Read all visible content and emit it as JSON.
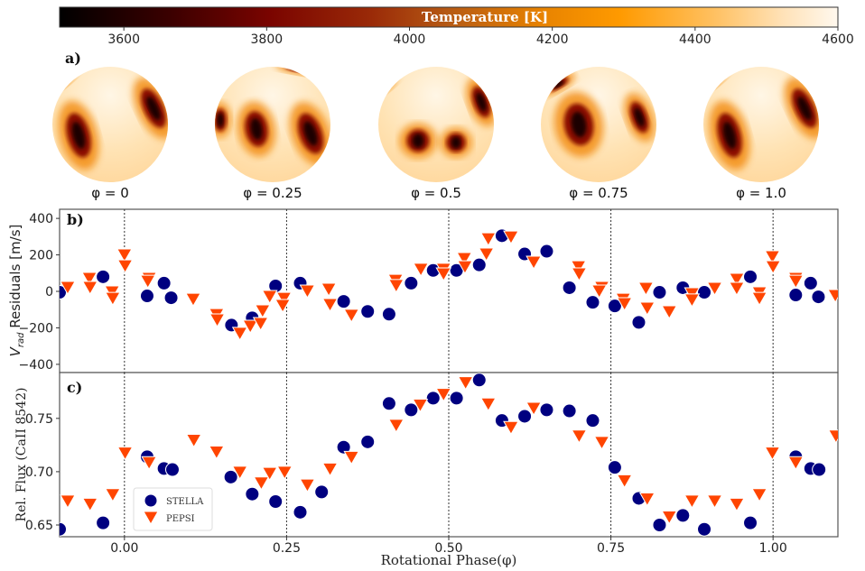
{
  "colorbar": {
    "title": "Temperature [K]",
    "range": [
      3510,
      4600
    ],
    "ticks": [
      "3600",
      "3800",
      "4000",
      "4200",
      "4400",
      "4600"
    ],
    "tick_values": [
      3600,
      3800,
      4000,
      4200,
      4400,
      4600
    ],
    "colors": [
      "#000000",
      "#5a0000",
      "#880800",
      "#c05a10",
      "#ff9a00",
      "#ffd9a0",
      "#fff8ee"
    ]
  },
  "panel_a": {
    "label": "a)",
    "maps": [
      {
        "phase_label": "φ = 0"
      },
      {
        "phase_label": "φ = 0.25"
      },
      {
        "phase_label": "φ = 0.5"
      },
      {
        "phase_label": "φ = 0.75"
      },
      {
        "phase_label": "φ = 1.0"
      }
    ]
  },
  "chart_data": [
    {
      "type": "scatter",
      "panel_label": "b)",
      "ylabel_symbol": "V",
      "ylabel_sub": "rad",
      "ylabel_rest": " Residuals [m/s]",
      "xlim": [
        -0.1,
        1.1
      ],
      "ylim": [
        -445,
        450
      ],
      "yticks": [
        400,
        200,
        0,
        -200,
        -400
      ],
      "ytick_labels": [
        "400",
        "200",
        "0",
        "−200",
        "−400"
      ],
      "vlines": [
        0,
        0.25,
        0.5,
        0.75,
        1.0
      ],
      "series": [
        {
          "name": "STELLA",
          "marker": "circle",
          "color": "#000080",
          "x": [
            -0.1,
            -0.033,
            0.035,
            0.061,
            0.072,
            0.165,
            0.197,
            0.233,
            0.271,
            0.338,
            0.375,
            0.408,
            0.442,
            0.476,
            0.512,
            0.547,
            0.582,
            0.617,
            0.651,
            0.686,
            0.722,
            0.756,
            0.793,
            0.825,
            0.861,
            0.894,
            0.965,
            1.035,
            1.058,
            1.07
          ],
          "y": [
            -5,
            80,
            -25,
            45,
            -35,
            -185,
            -145,
            30,
            45,
            -55,
            -110,
            -125,
            45,
            115,
            115,
            145,
            305,
            205,
            220,
            20,
            -60,
            -80,
            -170,
            -5,
            20,
            -5,
            80,
            -20,
            45,
            -30
          ]
        },
        {
          "name": "PEPSI",
          "marker": "triangle_down",
          "color": "#ff4500",
          "x": [
            -0.0875,
            -0.054,
            -0.053,
            -0.019,
            -0.018,
            0.0,
            0.001,
            0.038,
            0.036,
            0.106,
            0.142,
            0.143,
            0.178,
            0.194,
            0.21,
            0.213,
            0.224,
            0.246,
            0.244,
            0.282,
            0.315,
            0.317,
            0.35,
            0.418,
            0.419,
            0.457,
            0.492,
            0.492,
            0.524,
            0.525,
            0.558,
            0.561,
            0.596,
            0.631,
            0.7,
            0.701,
            0.736,
            0.732,
            0.769,
            0.771,
            0.804,
            0.806,
            0.84,
            0.875,
            0.875,
            0.91,
            0.944,
            0.944,
            0.979,
            0.979,
            0.999,
            1.0,
            1.035,
            1.035,
            1.096
          ],
          "y": [
            25,
            74,
            25,
            0,
            -35,
            203,
            143,
            74,
            59,
            -40,
            -124,
            -153,
            -227,
            -188,
            -173,
            -104,
            -25,
            -35,
            -74,
            5,
            15,
            -69,
            -128,
            64,
            35,
            124,
            124,
            99,
            183,
            138,
            208,
            291,
            301,
            163,
            138,
            99,
            25,
            5,
            -40,
            -64,
            20,
            -89,
            -109,
            -10,
            -44,
            20,
            69,
            20,
            -5,
            -35,
            193,
            138,
            74,
            59,
            -20
          ]
        }
      ]
    },
    {
      "type": "scatter",
      "panel_label": "c)",
      "ylabel": "Rel. Flux (CaII 8542)",
      "xlabel": "Rotational Phase(φ)",
      "xlim": [
        -0.1,
        1.1
      ],
      "ylim": [
        0.639,
        0.793
      ],
      "xticks": [
        0,
        0.25,
        0.5,
        0.75,
        1.0
      ],
      "xtick_labels": [
        "0.00",
        "0.25",
        "0.50",
        "0.75",
        "1.00"
      ],
      "yticks": [
        0.75,
        0.7,
        0.65
      ],
      "ytick_labels": [
        "0.75",
        "0.70",
        "0.65"
      ],
      "vlines": [
        0,
        0.25,
        0.5,
        0.75,
        1.0
      ],
      "legend": {
        "placement": "lower-left",
        "entries": [
          "STELLA",
          "PEPSI"
        ]
      },
      "series": [
        {
          "name": "STELLA",
          "marker": "circle",
          "color": "#000080",
          "x": [
            -0.1,
            -0.033,
            0.035,
            0.061,
            0.074,
            0.164,
            0.197,
            0.233,
            0.271,
            0.304,
            0.338,
            0.375,
            0.408,
            0.442,
            0.476,
            0.512,
            0.547,
            0.582,
            0.617,
            0.651,
            0.686,
            0.722,
            0.756,
            0.793,
            0.825,
            0.861,
            0.894,
            0.965,
            1.035,
            1.058,
            1.071
          ],
          "y": [
            0.646,
            0.652,
            0.714,
            0.703,
            0.702,
            0.695,
            0.679,
            0.672,
            0.662,
            0.681,
            0.723,
            0.728,
            0.764,
            0.758,
            0.769,
            0.769,
            0.786,
            0.748,
            0.752,
            0.758,
            0.757,
            0.748,
            0.704,
            0.675,
            0.65,
            0.659,
            0.646,
            0.652,
            0.714,
            0.703,
            0.702
          ]
        },
        {
          "name": "PEPSI",
          "marker": "triangle_down",
          "color": "#ff4500",
          "x": [
            -0.0875,
            -0.053,
            -0.018,
            0.001,
            0.038,
            0.107,
            0.142,
            0.178,
            0.211,
            0.224,
            0.247,
            0.282,
            0.317,
            0.35,
            0.419,
            0.456,
            0.492,
            0.526,
            0.561,
            0.596,
            0.631,
            0.701,
            0.736,
            0.771,
            0.806,
            0.84,
            0.875,
            0.91,
            0.944,
            0.979,
            0.999,
            1.035,
            1.097
          ],
          "y": [
            0.673,
            0.67,
            0.679,
            0.718,
            0.709,
            0.73,
            0.719,
            0.7,
            0.69,
            0.699,
            0.7,
            0.688,
            0.703,
            0.714,
            0.744,
            0.763,
            0.773,
            0.784,
            0.764,
            0.742,
            0.76,
            0.734,
            0.728,
            0.692,
            0.675,
            0.658,
            0.673,
            0.673,
            0.67,
            0.679,
            0.718,
            0.709,
            0.734
          ]
        }
      ]
    }
  ]
}
